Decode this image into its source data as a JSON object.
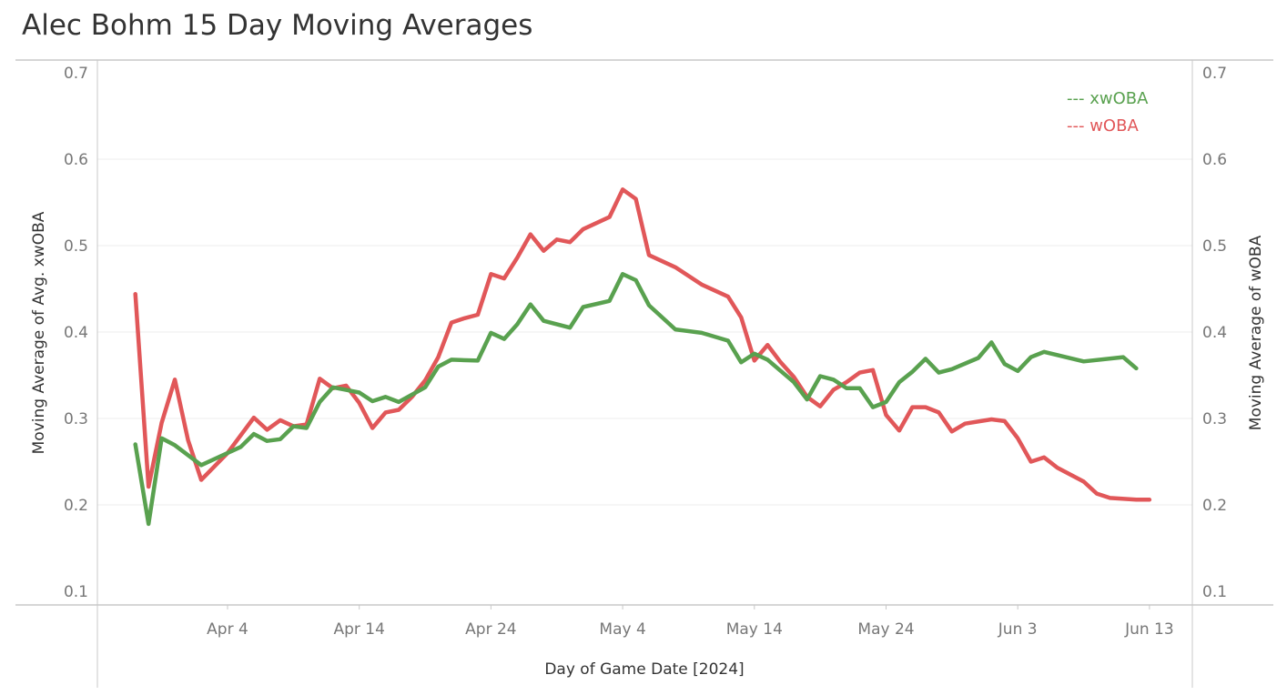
{
  "title": "Alec Bohm 15 Day Moving Averages",
  "chart_data": {
    "type": "line",
    "title": "Alec Bohm 15 Day Moving Averages",
    "xlabel": "Day of Game Date [2024]",
    "ylabel_left": "Moving Average of Avg. xwOBA",
    "ylabel_right": "Moving Average of wOBA",
    "ylim": [
      0.1,
      0.7
    ],
    "y_ticks": [
      "0.1",
      "0.2",
      "0.3",
      "0.4",
      "0.5",
      "0.6",
      "0.7"
    ],
    "x_range": [
      "2024-03-25",
      "2024-06-16"
    ],
    "x_ticks": [
      {
        "date": "2024-04-04",
        "label": "Apr 4"
      },
      {
        "date": "2024-04-14",
        "label": "Apr 14"
      },
      {
        "date": "2024-04-24",
        "label": "Apr 24"
      },
      {
        "date": "2024-05-04",
        "label": "May 4"
      },
      {
        "date": "2024-05-14",
        "label": "May 14"
      },
      {
        "date": "2024-05-24",
        "label": "May 24"
      },
      {
        "date": "2024-06-03",
        "label": "Jun 3"
      },
      {
        "date": "2024-06-13",
        "label": "Jun 13"
      }
    ],
    "grid": true,
    "legend_position": "top-right",
    "series": [
      {
        "name": "xwOBA",
        "legend_label": "--- xwOBA",
        "color": "#59a14f",
        "points": [
          {
            "x": "2024-03-28",
            "y": 0.27
          },
          {
            "x": "2024-03-29",
            "y": 0.178
          },
          {
            "x": "2024-03-30",
            "y": 0.277
          },
          {
            "x": "2024-03-31",
            "y": 0.269
          },
          {
            "x": "2024-04-02",
            "y": 0.246
          },
          {
            "x": "2024-04-05",
            "y": 0.267
          },
          {
            "x": "2024-04-06",
            "y": 0.282
          },
          {
            "x": "2024-04-07",
            "y": 0.274
          },
          {
            "x": "2024-04-08",
            "y": 0.276
          },
          {
            "x": "2024-04-09",
            "y": 0.291
          },
          {
            "x": "2024-04-10",
            "y": 0.289
          },
          {
            "x": "2024-04-11",
            "y": 0.319
          },
          {
            "x": "2024-04-12",
            "y": 0.336
          },
          {
            "x": "2024-04-13",
            "y": 0.333
          },
          {
            "x": "2024-04-14",
            "y": 0.33
          },
          {
            "x": "2024-04-15",
            "y": 0.32
          },
          {
            "x": "2024-04-16",
            "y": 0.325
          },
          {
            "x": "2024-04-17",
            "y": 0.319
          },
          {
            "x": "2024-04-19",
            "y": 0.336
          },
          {
            "x": "2024-04-20",
            "y": 0.36
          },
          {
            "x": "2024-04-21",
            "y": 0.368
          },
          {
            "x": "2024-04-23",
            "y": 0.367
          },
          {
            "x": "2024-04-24",
            "y": 0.399
          },
          {
            "x": "2024-04-25",
            "y": 0.392
          },
          {
            "x": "2024-04-26",
            "y": 0.409
          },
          {
            "x": "2024-04-27",
            "y": 0.432
          },
          {
            "x": "2024-04-28",
            "y": 0.413
          },
          {
            "x": "2024-04-30",
            "y": 0.405
          },
          {
            "x": "2024-05-01",
            "y": 0.429
          },
          {
            "x": "2024-05-03",
            "y": 0.436
          },
          {
            "x": "2024-05-04",
            "y": 0.467
          },
          {
            "x": "2024-05-05",
            "y": 0.46
          },
          {
            "x": "2024-05-06",
            "y": 0.431
          },
          {
            "x": "2024-05-08",
            "y": 0.403
          },
          {
            "x": "2024-05-10",
            "y": 0.399
          },
          {
            "x": "2024-05-12",
            "y": 0.39
          },
          {
            "x": "2024-05-13",
            "y": 0.365
          },
          {
            "x": "2024-05-14",
            "y": 0.375
          },
          {
            "x": "2024-05-15",
            "y": 0.368
          },
          {
            "x": "2024-05-17",
            "y": 0.342
          },
          {
            "x": "2024-05-18",
            "y": 0.322
          },
          {
            "x": "2024-05-19",
            "y": 0.349
          },
          {
            "x": "2024-05-20",
            "y": 0.345
          },
          {
            "x": "2024-05-21",
            "y": 0.335
          },
          {
            "x": "2024-05-22",
            "y": 0.335
          },
          {
            "x": "2024-05-23",
            "y": 0.313
          },
          {
            "x": "2024-05-24",
            "y": 0.319
          },
          {
            "x": "2024-05-25",
            "y": 0.342
          },
          {
            "x": "2024-05-26",
            "y": 0.354
          },
          {
            "x": "2024-05-27",
            "y": 0.369
          },
          {
            "x": "2024-05-28",
            "y": 0.353
          },
          {
            "x": "2024-05-29",
            "y": 0.357
          },
          {
            "x": "2024-05-31",
            "y": 0.37
          },
          {
            "x": "2024-06-01",
            "y": 0.388
          },
          {
            "x": "2024-06-02",
            "y": 0.363
          },
          {
            "x": "2024-06-03",
            "y": 0.355
          },
          {
            "x": "2024-06-04",
            "y": 0.371
          },
          {
            "x": "2024-06-05",
            "y": 0.377
          },
          {
            "x": "2024-06-08",
            "y": 0.366
          },
          {
            "x": "2024-06-11",
            "y": 0.371
          },
          {
            "x": "2024-06-12",
            "y": 0.358
          }
        ]
      },
      {
        "name": "wOBA",
        "legend_label": "--- wOBA",
        "color": "#e15759",
        "points": [
          {
            "x": "2024-03-28",
            "y": 0.444
          },
          {
            "x": "2024-03-29",
            "y": 0.221
          },
          {
            "x": "2024-03-30",
            "y": 0.295
          },
          {
            "x": "2024-03-31",
            "y": 0.345
          },
          {
            "x": "2024-04-01",
            "y": 0.275
          },
          {
            "x": "2024-04-02",
            "y": 0.229
          },
          {
            "x": "2024-04-04",
            "y": 0.26
          },
          {
            "x": "2024-04-06",
            "y": 0.301
          },
          {
            "x": "2024-04-07",
            "y": 0.287
          },
          {
            "x": "2024-04-08",
            "y": 0.298
          },
          {
            "x": "2024-04-09",
            "y": 0.291
          },
          {
            "x": "2024-04-10",
            "y": 0.293
          },
          {
            "x": "2024-04-11",
            "y": 0.346
          },
          {
            "x": "2024-04-12",
            "y": 0.335
          },
          {
            "x": "2024-04-13",
            "y": 0.338
          },
          {
            "x": "2024-04-14",
            "y": 0.318
          },
          {
            "x": "2024-04-15",
            "y": 0.289
          },
          {
            "x": "2024-04-16",
            "y": 0.307
          },
          {
            "x": "2024-04-17",
            "y": 0.31
          },
          {
            "x": "2024-04-18",
            "y": 0.325
          },
          {
            "x": "2024-04-19",
            "y": 0.344
          },
          {
            "x": "2024-04-20",
            "y": 0.371
          },
          {
            "x": "2024-04-21",
            "y": 0.411
          },
          {
            "x": "2024-04-22",
            "y": 0.416
          },
          {
            "x": "2024-04-23",
            "y": 0.42
          },
          {
            "x": "2024-04-24",
            "y": 0.467
          },
          {
            "x": "2024-04-25",
            "y": 0.462
          },
          {
            "x": "2024-04-26",
            "y": 0.486
          },
          {
            "x": "2024-04-27",
            "y": 0.513
          },
          {
            "x": "2024-04-28",
            "y": 0.494
          },
          {
            "x": "2024-04-29",
            "y": 0.507
          },
          {
            "x": "2024-04-30",
            "y": 0.504
          },
          {
            "x": "2024-05-01",
            "y": 0.519
          },
          {
            "x": "2024-05-03",
            "y": 0.533
          },
          {
            "x": "2024-05-04",
            "y": 0.565
          },
          {
            "x": "2024-05-05",
            "y": 0.554
          },
          {
            "x": "2024-05-06",
            "y": 0.489
          },
          {
            "x": "2024-05-08",
            "y": 0.475
          },
          {
            "x": "2024-05-10",
            "y": 0.455
          },
          {
            "x": "2024-05-12",
            "y": 0.441
          },
          {
            "x": "2024-05-13",
            "y": 0.417
          },
          {
            "x": "2024-05-14",
            "y": 0.367
          },
          {
            "x": "2024-05-15",
            "y": 0.385
          },
          {
            "x": "2024-05-16",
            "y": 0.365
          },
          {
            "x": "2024-05-17",
            "y": 0.348
          },
          {
            "x": "2024-05-18",
            "y": 0.325
          },
          {
            "x": "2024-05-19",
            "y": 0.314
          },
          {
            "x": "2024-05-20",
            "y": 0.333
          },
          {
            "x": "2024-05-21",
            "y": 0.342
          },
          {
            "x": "2024-05-22",
            "y": 0.353
          },
          {
            "x": "2024-05-23",
            "y": 0.356
          },
          {
            "x": "2024-05-24",
            "y": 0.304
          },
          {
            "x": "2024-05-25",
            "y": 0.286
          },
          {
            "x": "2024-05-26",
            "y": 0.313
          },
          {
            "x": "2024-05-27",
            "y": 0.313
          },
          {
            "x": "2024-05-28",
            "y": 0.307
          },
          {
            "x": "2024-05-29",
            "y": 0.285
          },
          {
            "x": "2024-05-30",
            "y": 0.294
          },
          {
            "x": "2024-06-01",
            "y": 0.299
          },
          {
            "x": "2024-06-02",
            "y": 0.297
          },
          {
            "x": "2024-06-03",
            "y": 0.277
          },
          {
            "x": "2024-06-04",
            "y": 0.25
          },
          {
            "x": "2024-06-05",
            "y": 0.255
          },
          {
            "x": "2024-06-06",
            "y": 0.243
          },
          {
            "x": "2024-06-08",
            "y": 0.227
          },
          {
            "x": "2024-06-09",
            "y": 0.213
          },
          {
            "x": "2024-06-10",
            "y": 0.208
          },
          {
            "x": "2024-06-12",
            "y": 0.206
          },
          {
            "x": "2024-06-13",
            "y": 0.206
          }
        ]
      }
    ]
  }
}
